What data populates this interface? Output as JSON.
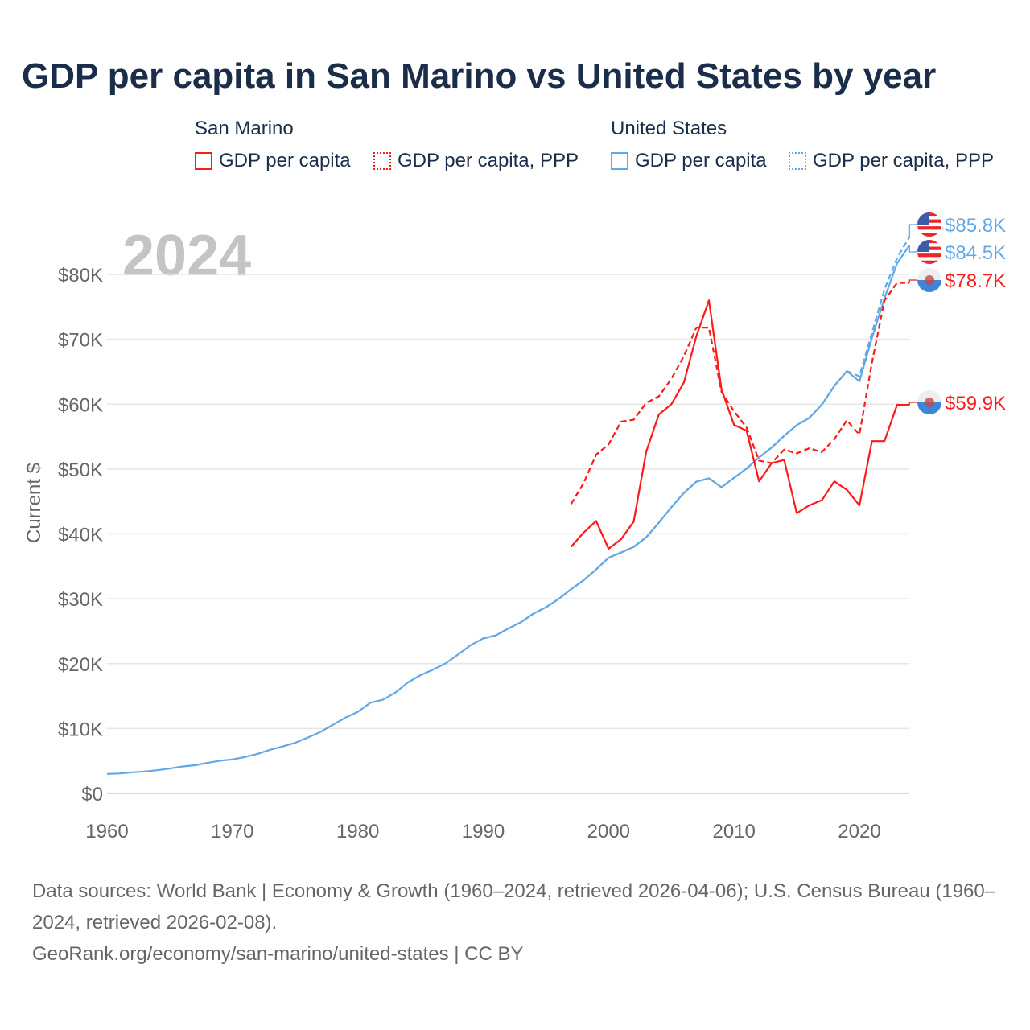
{
  "title": "GDP per capita in San Marino vs United States by year",
  "legend": {
    "groups": [
      {
        "name": "San Marino",
        "items": [
          "GDP per capita",
          "GDP per capita, PPP"
        ],
        "color": "#ff1a1a"
      },
      {
        "name": "United States",
        "items": [
          "GDP per capita",
          "GDP per capita, PPP"
        ],
        "color": "#62a8e8"
      }
    ]
  },
  "footer": {
    "sources": "Data sources: World Bank | Economy & Growth (1960–2024, retrieved 2026-04-06); U.S. Census Bureau (1960–2024, retrieved 2026-02-08).",
    "link": "GeoRank.org/economy/san-marino/united-states | CC BY"
  },
  "chart_data": {
    "type": "line",
    "title": "GDP per capita in San Marino vs United States by year",
    "year_overlay": "2024",
    "xlabel": "",
    "ylabel": "Current $",
    "xlim": [
      1960,
      2024
    ],
    "ylim": [
      0,
      85000
    ],
    "x_ticks": [
      "1960",
      "1970",
      "1980",
      "1990",
      "2000",
      "2010",
      "2020"
    ],
    "y_ticks": [
      "$0",
      "$10K",
      "$20K",
      "$30K",
      "$40K",
      "$50K",
      "$60K",
      "$70K",
      "$80K"
    ],
    "y_tick_values": [
      0,
      10000,
      20000,
      30000,
      40000,
      50000,
      60000,
      70000,
      80000
    ],
    "grid": true,
    "series": [
      {
        "name": "United States GDP per capita",
        "color": "#62a8e8",
        "dashed": false,
        "end_label": "$84.5K",
        "flag": "us",
        "x_start": 1960,
        "values": [
          3007,
          3067,
          3244,
          3375,
          3574,
          3828,
          4146,
          4336,
          4696,
          5032,
          5234,
          5609,
          6094,
          6726,
          7226,
          7801,
          8592,
          9453,
          10565,
          11674,
          12575,
          13976,
          14434,
          15544,
          17121,
          18237,
          19071,
          20039,
          21417,
          22857,
          23889,
          24342,
          25419,
          26387,
          27695,
          28691,
          29968,
          31459,
          32854,
          34515,
          36330,
          37134,
          37998,
          39490,
          41725,
          44123,
          46302,
          48050,
          48570,
          47195,
          48651,
          50066,
          51784,
          53291,
          55124,
          56763,
          57867,
          59915,
          62805,
          65095,
          63528,
          70219,
          76330,
          81695,
          84500
        ]
      },
      {
        "name": "United States GDP per capita, PPP",
        "color": "#62a8e8",
        "dashed": true,
        "end_label": "$85.8K",
        "flag": "us",
        "x_start": 1990,
        "values": [
          23889,
          24342,
          25419,
          26387,
          27695,
          28691,
          29968,
          31459,
          32854,
          34515,
          36330,
          37134,
          37998,
          39490,
          41725,
          44123,
          46302,
          48050,
          48570,
          47195,
          48651,
          50066,
          51784,
          53291,
          55124,
          56763,
          57867,
          59915,
          62805,
          65095,
          64300,
          71000,
          77700,
          82500,
          85800
        ]
      },
      {
        "name": "San Marino GDP per capita",
        "color": "#ff1a1a",
        "dashed": false,
        "end_label": "$59.9K",
        "flag": "sm",
        "x_start": 1997,
        "values": [
          38000,
          40200,
          42000,
          37700,
          39200,
          41900,
          52700,
          58400,
          60000,
          63300,
          70500,
          76000,
          62300,
          56800,
          55900,
          48100,
          50900,
          51400,
          43200,
          44400,
          45200,
          48100,
          46800,
          44400,
          54300,
          54300,
          59900,
          59900
        ]
      },
      {
        "name": "San Marino GDP per capita, PPP",
        "color": "#ff1a1a",
        "dashed": true,
        "end_label": "$78.7K",
        "flag": "sm",
        "x_start": 1997,
        "values": [
          44600,
          47800,
          52200,
          53800,
          57300,
          57600,
          60200,
          61200,
          63900,
          67400,
          71800,
          71800,
          61900,
          58900,
          56400,
          51300,
          50900,
          53000,
          52400,
          53200,
          52600,
          54600,
          57500,
          55300,
          66400,
          76000,
          78700,
          78700
        ]
      }
    ]
  }
}
